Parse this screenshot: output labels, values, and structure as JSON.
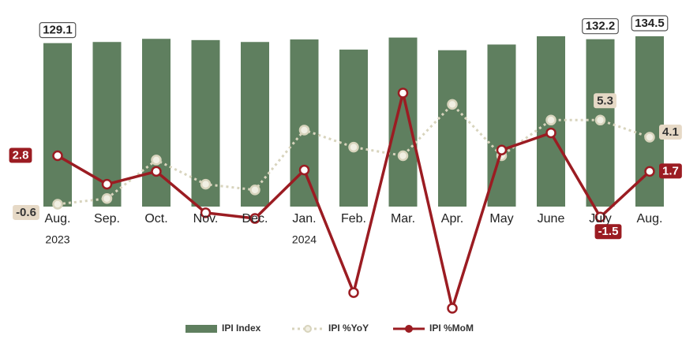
{
  "chart_data": {
    "type": "bar-line",
    "categories": [
      "Aug.",
      "Sep.",
      "Oct.",
      "Nov.",
      "Dec.",
      "Jan.",
      "Feb.",
      "Mar.",
      "Apr.",
      "May",
      "June",
      "July",
      "Aug."
    ],
    "year_labels": [
      "2023",
      null,
      null,
      null,
      null,
      "2024",
      null,
      null,
      null,
      null,
      null,
      null,
      null
    ],
    "ylim": [
      0,
      137
    ],
    "y2lim": [
      -8.4,
      11.4
    ],
    "series": [
      {
        "name": "IPI Index",
        "type": "bar",
        "color": "#5f7f5f",
        "values": [
          129.1,
          130,
          132.5,
          131.5,
          130,
          132,
          124,
          133.5,
          123.5,
          128,
          134.5,
          132.2,
          134.5
        ],
        "value_labels": [
          "129.1",
          null,
          null,
          null,
          null,
          null,
          null,
          null,
          null,
          null,
          null,
          "132.2",
          "134.5"
        ]
      },
      {
        "name": "IPI %YoY",
        "type": "line",
        "axis": "y2",
        "color": "#d8d4bd",
        "dashed": true,
        "values": [
          -0.6,
          -0.2,
          2.5,
          0.8,
          0.4,
          4.6,
          3.4,
          2.8,
          6.4,
          2.8,
          5.3,
          5.3,
          4.1
        ],
        "value_labels": [
          "-0.6",
          null,
          null,
          null,
          null,
          null,
          null,
          null,
          null,
          null,
          null,
          "5.3",
          "4.1"
        ]
      },
      {
        "name": "IPI %MoM",
        "type": "line",
        "axis": "y2",
        "color": "#9b1c22",
        "values": [
          2.8,
          0.8,
          1.7,
          -1.2,
          -1.6,
          1.8,
          -6.8,
          7.2,
          -7.9,
          3.2,
          4.4,
          -1.5,
          1.7
        ],
        "value_labels": [
          "2.8",
          null,
          null,
          null,
          null,
          null,
          null,
          null,
          null,
          null,
          null,
          "-1.5",
          "1.7"
        ]
      }
    ]
  }
}
